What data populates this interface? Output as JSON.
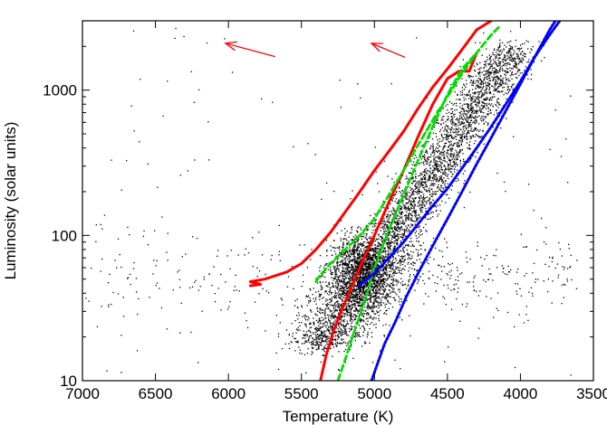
{
  "chart_data": {
    "type": "scatter",
    "title": "",
    "xlabel": "Temperature (K)",
    "ylabel": "Luminosity (solar units)",
    "xlim": [
      7000,
      3500
    ],
    "ylim": [
      10,
      3000
    ],
    "x_reversed": true,
    "y_scale": "log",
    "grid": false,
    "x_ticks": [
      7000,
      6500,
      6000,
      5500,
      5000,
      4500,
      4000,
      3500
    ],
    "x_tick_labels": [
      "7000",
      "6500",
      "6000",
      "5500",
      "5000",
      "4500",
      "4000",
      "3500"
    ],
    "y_ticks": [
      10,
      100,
      1000
    ],
    "y_tick_labels": [
      "10",
      "100",
      "1000"
    ],
    "scatter_description": "dense cloud of black dots (observed stars) concentrated along a diagonal band from about (5400 K, 20) to (4000 K, 2000), with a sparse horizontal spread near L≈50 toward 7000 K",
    "series": [
      {
        "color": "#ff0000",
        "style": "solid",
        "points": [
          [
            5850,
            45
          ],
          [
            5780,
            46
          ],
          [
            5850,
            48
          ],
          [
            5750,
            50
          ],
          [
            5600,
            56
          ],
          [
            5500,
            64
          ],
          [
            5400,
            80
          ],
          [
            5300,
            105
          ],
          [
            5200,
            145
          ],
          [
            5100,
            200
          ],
          [
            5000,
            280
          ],
          [
            4900,
            380
          ],
          [
            4800,
            520
          ],
          [
            4700,
            750
          ],
          [
            4600,
            1050
          ],
          [
            4500,
            1400
          ],
          [
            4400,
            1900
          ],
          [
            4300,
            2600
          ],
          [
            4200,
            3000
          ]
        ]
      },
      {
        "color": "#ff0000",
        "style": "solid",
        "points": [
          [
            5370,
            10
          ],
          [
            5330,
            15
          ],
          [
            5280,
            22
          ],
          [
            5200,
            35
          ],
          [
            5100,
            60
          ],
          [
            5000,
            100
          ],
          [
            4900,
            170
          ],
          [
            4800,
            280
          ],
          [
            4700,
            480
          ],
          [
            4600,
            800
          ],
          [
            4500,
            1200
          ],
          [
            4420,
            1350
          ],
          [
            4350,
            1350
          ],
          [
            4300,
            1800
          ]
        ]
      },
      {
        "color": "#00dd00",
        "style": "dashed",
        "points": [
          [
            5250,
            10
          ],
          [
            5200,
            14
          ],
          [
            5150,
            20
          ],
          [
            5100,
            28
          ],
          [
            5050,
            40
          ],
          [
            5000,
            60
          ],
          [
            4900,
            110
          ],
          [
            4800,
            190
          ],
          [
            4700,
            330
          ],
          [
            4600,
            560
          ],
          [
            4500,
            930
          ],
          [
            4400,
            1400
          ],
          [
            4300,
            1800
          ]
        ]
      },
      {
        "color": "#00dd00",
        "style": "dashed",
        "points": [
          [
            5400,
            48
          ],
          [
            5380,
            52
          ],
          [
            5300,
            64
          ],
          [
            5200,
            80
          ],
          [
            5100,
            100
          ],
          [
            5000,
            130
          ],
          [
            4900,
            190
          ],
          [
            4800,
            280
          ],
          [
            4700,
            420
          ],
          [
            4600,
            620
          ],
          [
            4500,
            900
          ],
          [
            4400,
            1300
          ],
          [
            4300,
            1800
          ],
          [
            4200,
            2400
          ],
          [
            4150,
            2700
          ]
        ]
      },
      {
        "color": "#0000ff",
        "style": "dotted",
        "points": [
          [
            5020,
            10
          ],
          [
            4980,
            13
          ],
          [
            4930,
            18
          ],
          [
            4860,
            25
          ],
          [
            4780,
            38
          ],
          [
            4700,
            55
          ],
          [
            4600,
            85
          ],
          [
            4500,
            130
          ],
          [
            4400,
            200
          ],
          [
            4300,
            310
          ],
          [
            4200,
            470
          ],
          [
            4100,
            720
          ],
          [
            4000,
            1100
          ],
          [
            3900,
            1700
          ],
          [
            3800,
            2600
          ],
          [
            3760,
            3000
          ]
        ]
      },
      {
        "color": "#0000ff",
        "style": "dotted",
        "points": [
          [
            5100,
            45
          ],
          [
            5000,
            55
          ],
          [
            4900,
            70
          ],
          [
            4800,
            90
          ],
          [
            4700,
            120
          ],
          [
            4600,
            160
          ],
          [
            4500,
            210
          ],
          [
            4400,
            290
          ],
          [
            4300,
            400
          ],
          [
            4200,
            560
          ],
          [
            4100,
            800
          ],
          [
            4000,
            1150
          ],
          [
            3900,
            1700
          ],
          [
            3800,
            2400
          ],
          [
            3730,
            3000
          ]
        ]
      }
    ],
    "annotations": [
      {
        "type": "arrow",
        "color": "#ff0000",
        "from": [
          5680,
          1700
        ],
        "to": [
          6020,
          2100
        ]
      },
      {
        "type": "arrow",
        "color": "#ff0000",
        "from": [
          4790,
          1680
        ],
        "to": [
          5020,
          2100
        ]
      }
    ]
  }
}
